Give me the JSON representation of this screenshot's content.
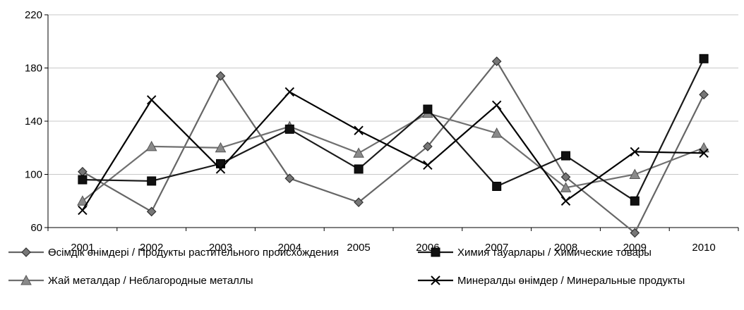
{
  "chart_data": {
    "type": "line",
    "title": "",
    "xlabel": "",
    "ylabel": "",
    "categories": [
      "2001",
      "2002",
      "2003",
      "2004",
      "2005",
      "2006",
      "2007",
      "2008",
      "2009",
      "2010"
    ],
    "ylim": [
      60,
      220
    ],
    "yticks": [
      60,
      100,
      140,
      180,
      220
    ],
    "grid": "horizontal",
    "legend_placement": "bottom",
    "series": [
      {
        "name": "Өсімдік өнімдері / Продукты растительного происхождения",
        "marker": "diamond",
        "color": "#666666",
        "values": [
          102,
          72,
          174,
          97,
          79,
          121,
          185,
          98,
          56,
          160
        ]
      },
      {
        "name": "Химия тауарлары / Химические товары",
        "marker": "square",
        "color": "#1a1a1a",
        "values": [
          96,
          95,
          108,
          134,
          104,
          149,
          91,
          114,
          80,
          187
        ]
      },
      {
        "name": "Жай металдар / Неблагородные металлы",
        "marker": "triangle",
        "color": "#707070",
        "values": [
          80,
          121,
          120,
          136,
          116,
          146,
          131,
          90,
          100,
          120
        ]
      },
      {
        "name": "Минералды өнімдер / Минеральные продукты",
        "marker": "x",
        "color": "#000000",
        "values": [
          73,
          156,
          104,
          162,
          133,
          107,
          152,
          80,
          117,
          116
        ]
      }
    ]
  }
}
